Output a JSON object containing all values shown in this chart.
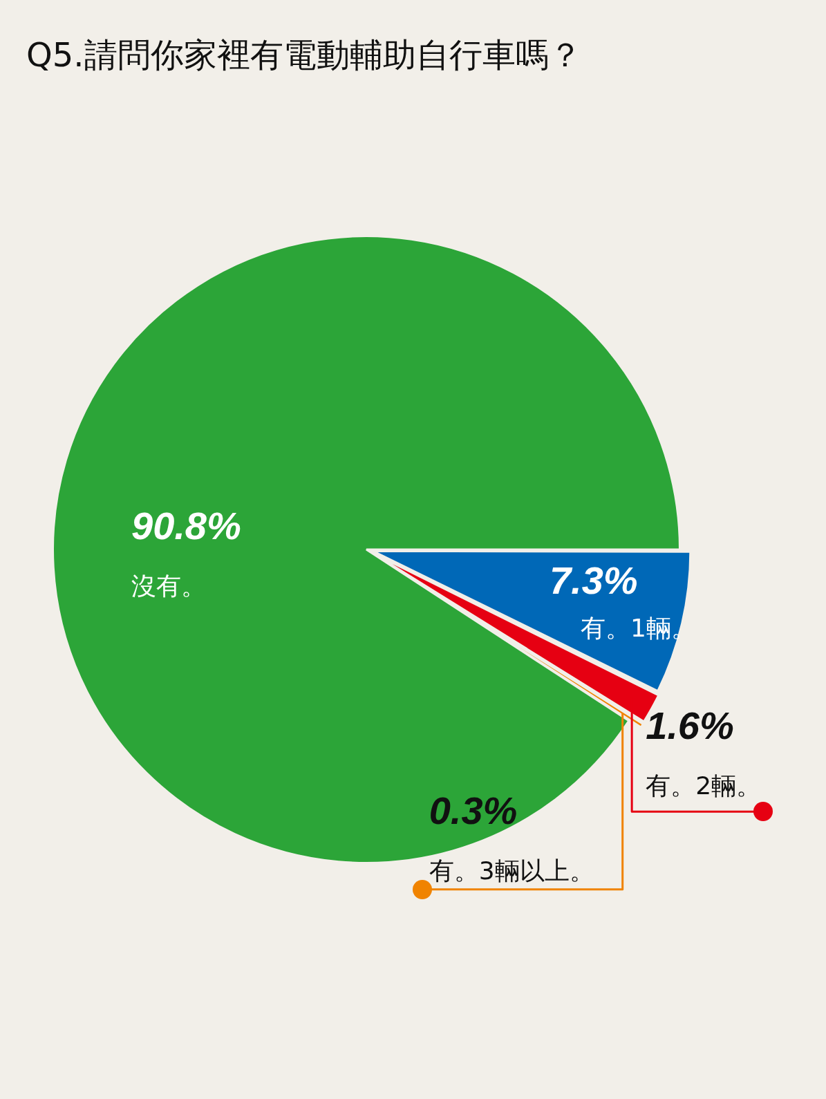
{
  "chart_data": {
    "type": "pie",
    "title": "Q5.請問你家裡有電動輔助自行車嗎？",
    "categories": [
      "有。1輛。",
      "有。2輛。",
      "有。3輛以上。",
      "沒有。"
    ],
    "values": [
      7.3,
      1.6,
      0.3,
      90.8
    ],
    "colors": [
      "#0068b7",
      "#e60012",
      "#f08300",
      "#2ca538"
    ],
    "value_labels": [
      "7.3%",
      "1.6%",
      "0.3%",
      "90.8%"
    ],
    "legend": false
  }
}
